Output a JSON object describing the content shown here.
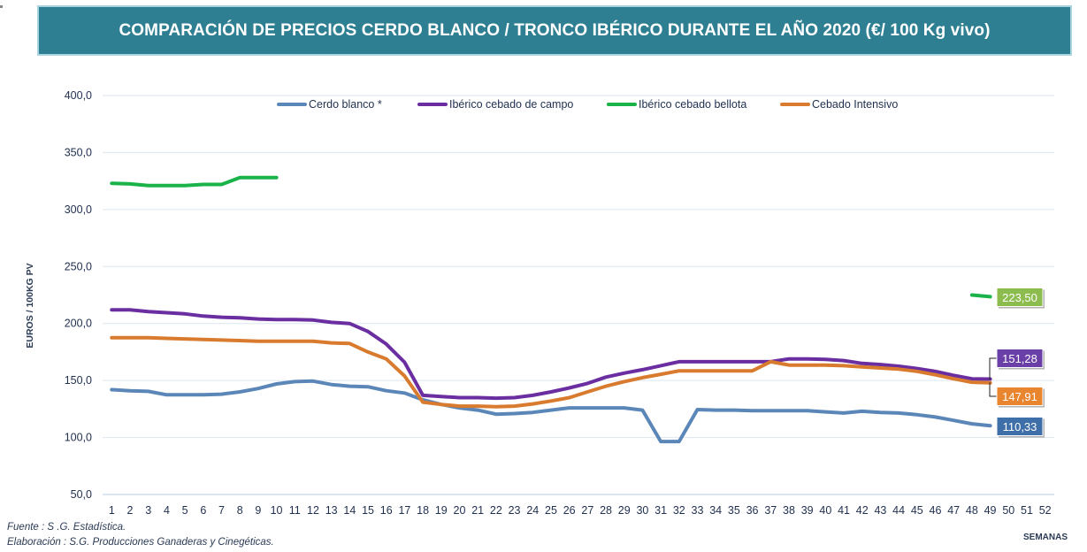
{
  "title": "COMPARACIÓN DE PRECIOS CERDO BLANCO / TRONCO IBÉRICO DURANTE EL AÑO 2020 (€/ 100 Kg vivo)",
  "footer": {
    "source": "Fuente :  S .G. Estadística.",
    "elaboration": "Elaboración : S.G. Producciones Ganaderas y Cinegéticas."
  },
  "chart_data": {
    "type": "line",
    "xlabel": "SEMANAS",
    "ylabel": "EUROS / 100KG PV",
    "ylim": [
      50,
      400
    ],
    "yticks": [
      "50,0",
      "100,0",
      "150,0",
      "200,0",
      "250,0",
      "300,0",
      "350,0",
      "400,0"
    ],
    "x": [
      1,
      2,
      3,
      4,
      5,
      6,
      7,
      8,
      9,
      10,
      11,
      12,
      13,
      14,
      15,
      16,
      17,
      18,
      19,
      20,
      21,
      22,
      23,
      24,
      25,
      26,
      27,
      28,
      29,
      30,
      31,
      32,
      33,
      34,
      35,
      36,
      37,
      38,
      39,
      40,
      41,
      42,
      43,
      44,
      45,
      46,
      47,
      48,
      49,
      50,
      51,
      52
    ],
    "grid": "horizontal",
    "legend_position": "top",
    "series": [
      {
        "name": "Cerdo blanco *",
        "color": "#5b87b8",
        "values": [
          142,
          141,
          140.5,
          137.5,
          137.5,
          137.5,
          138,
          140,
          143,
          147,
          149,
          149.5,
          146.5,
          145,
          144.5,
          141,
          139,
          133,
          129,
          126,
          124,
          120.5,
          121,
          122,
          124,
          126,
          126,
          126,
          126,
          124,
          96.5,
          96.5,
          124.5,
          124,
          124,
          123.5,
          123.5,
          123.5,
          123.5,
          122.5,
          121.5,
          123,
          122,
          121.5,
          120,
          118,
          115,
          112,
          110.33,
          null,
          null,
          null
        ],
        "end_label": "110,33",
        "label_color": "#3f6fa8"
      },
      {
        "name": "Ibérico cebado de campo",
        "color": "#6a2ea0",
        "values": [
          212,
          212,
          210.5,
          209.5,
          208.5,
          206.5,
          205.5,
          205,
          204,
          203.5,
          203.5,
          203,
          201,
          200,
          193,
          182,
          166,
          137,
          136,
          135,
          135,
          134.5,
          135,
          137,
          140,
          143.5,
          147.5,
          153,
          156.5,
          159.5,
          163,
          166.5,
          166.5,
          166.5,
          166.5,
          166.5,
          166.5,
          169,
          169,
          168.5,
          167.5,
          165,
          164,
          162.5,
          160.5,
          158,
          154.5,
          151.5,
          151.28,
          null,
          null,
          null
        ],
        "end_label": "151,28",
        "label_color": "#6a3fa8"
      },
      {
        "name": "Ibérico cebado bellota",
        "color": "#19b34a",
        "values": [
          323,
          322.5,
          321,
          321,
          321,
          322,
          322,
          328,
          328,
          328,
          null,
          null,
          null,
          null,
          null,
          null,
          null,
          null,
          null,
          null,
          null,
          null,
          null,
          null,
          null,
          null,
          null,
          null,
          null,
          null,
          null,
          null,
          null,
          null,
          null,
          null,
          null,
          null,
          null,
          null,
          null,
          null,
          null,
          null,
          null,
          null,
          null,
          225,
          223.5,
          null,
          null,
          null
        ],
        "end_label": "223,50",
        "label_color": "#8cbc4e"
      },
      {
        "name": "Cebado Intensivo",
        "color": "#d97b2e",
        "values": [
          187.5,
          187.5,
          187.5,
          187,
          186.5,
          186,
          185.5,
          185,
          184.5,
          184.5,
          184.5,
          184.5,
          183,
          182.5,
          175,
          169,
          154,
          131,
          129,
          127.5,
          127.5,
          127,
          127.5,
          129.5,
          132,
          135,
          140,
          145,
          149,
          152.5,
          155.5,
          158.5,
          158.5,
          158.5,
          158.5,
          158.5,
          166.5,
          163.5,
          163.5,
          163.5,
          163,
          162,
          161,
          160,
          158,
          155,
          151.5,
          148.5,
          147.91,
          null,
          null,
          null
        ],
        "end_label": "147,91",
        "label_color": "#e8852e"
      }
    ]
  }
}
